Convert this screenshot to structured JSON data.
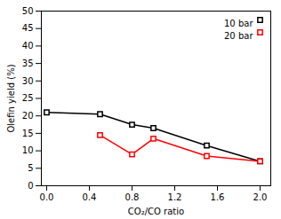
{
  "chart_data": {
    "type": "line",
    "xlabel": "CO₂/CO ratio",
    "ylabel": "Olefin yield (%)",
    "x": [
      0.0,
      0.5,
      0.8,
      1.0,
      1.5,
      2.0
    ],
    "series": [
      {
        "name": "10 bar",
        "color": "#000000",
        "values": [
          21.0,
          20.5,
          17.5,
          16.5,
          11.5,
          7.0
        ]
      },
      {
        "name": "20 bar",
        "color": "#ff0000",
        "values": [
          null,
          14.5,
          9.0,
          13.5,
          8.5,
          7.0
        ]
      }
    ],
    "xlim": [
      -0.05,
      2.1
    ],
    "ylim": [
      0,
      50
    ],
    "xticks": [
      {
        "value": 0,
        "label": "0.0"
      },
      0.4,
      0.8,
      1.2,
      1.6,
      {
        "value": 2,
        "label": "2.0"
      }
    ],
    "yticks": [
      0,
      5,
      10,
      15,
      20,
      25,
      30,
      35,
      40,
      45,
      50
    ],
    "marker": "square",
    "legend": "upper right",
    "grid": false
  }
}
